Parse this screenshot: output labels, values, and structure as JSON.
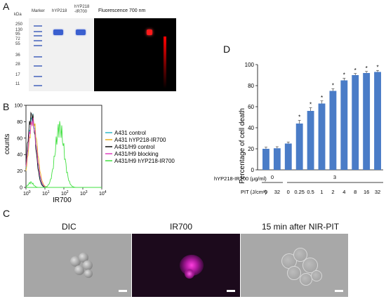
{
  "panels": {
    "a": "A",
    "b": "B",
    "c": "C",
    "d": "D"
  },
  "panel_a": {
    "kda_label": "kDa",
    "markers": [
      "250",
      "130",
      "95",
      "72",
      "55",
      "36",
      "28",
      "17",
      "11"
    ],
    "lane_labels": [
      "Marker",
      "hYP218",
      "hYP218\n-IR700"
    ],
    "fluorescence_label": "Fluorescence 700 nm",
    "colors": {
      "band": "#3355cc",
      "fluor_band": "#ff2020",
      "scale_red": "#e00000"
    }
  },
  "panel_b": {
    "ylabel": "counts",
    "xlabel": "IR700",
    "yticks": [
      "0",
      "20",
      "40",
      "60",
      "80",
      "100"
    ],
    "xticks": [
      "10",
      "10",
      "10",
      "10",
      "10"
    ],
    "xtick_exps": [
      "0",
      "1",
      "2",
      "3",
      "4"
    ],
    "legend": [
      {
        "name": "A431 control",
        "color": "#30b8c8"
      },
      {
        "name": "A431 hYP218-IR700",
        "color": "#e8b020"
      },
      {
        "name": "A431/H9 control",
        "color": "#111111"
      },
      {
        "name": "A431/H9 blocking",
        "color": "#e040c0"
      },
      {
        "name": "A431/H9 hYP218-IR700",
        "color": "#40e040"
      }
    ]
  },
  "panel_c": {
    "labels": [
      "DIC",
      "IR700",
      "15 min after NIR-PIT"
    ]
  },
  "chart_data": {
    "type": "bar",
    "ylabel": "Percentage of cell death",
    "ylim": [
      0,
      100
    ],
    "yticks": [
      0,
      20,
      40,
      60,
      80,
      100
    ],
    "row1_label": "hYP218-IR700  (μg/ml)",
    "row1_groups": [
      "0",
      "3"
    ],
    "row2_label": "PIT (J/cm²)",
    "categories": [
      "0",
      "32",
      "0",
      "0.25",
      "0.5",
      "1",
      "2",
      "4",
      "8",
      "16",
      "32"
    ],
    "values": [
      20,
      20.5,
      25,
      44,
      56,
      63,
      75,
      85,
      90,
      92,
      93
    ],
    "errors": [
      1.5,
      1.5,
      1.5,
      3,
      3,
      2.5,
      2,
      2,
      1.5,
      1.5,
      1.5
    ],
    "significant": [
      false,
      false,
      false,
      true,
      true,
      true,
      true,
      true,
      true,
      true,
      true
    ],
    "marker": "*",
    "color": "#4a7cc7"
  }
}
